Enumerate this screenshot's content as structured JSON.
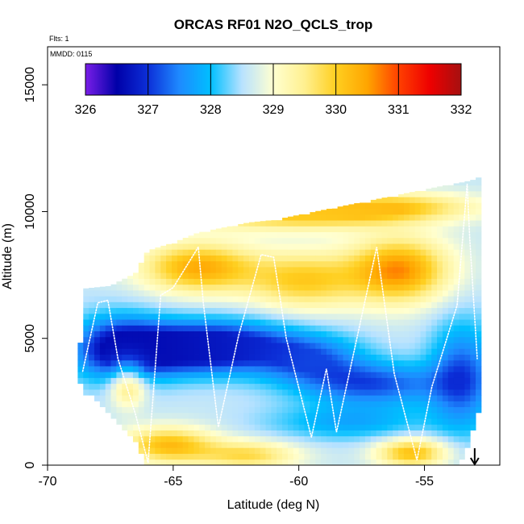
{
  "chart_data": {
    "type": "heatmap",
    "title": "ORCAS RF01 N2O_QCLS_trop",
    "flights_label": "Flts: 1",
    "date_label": "MMDD: 0115",
    "xlabel": "Latitude (deg N)",
    "ylabel": "Altitude (m)",
    "xlim": [
      -70,
      -52
    ],
    "ylim": [
      0,
      16500
    ],
    "x_ticks": [
      -70,
      -65,
      -60,
      -55
    ],
    "x_tick_labels": [
      "-70",
      "-65",
      "-60",
      "-55"
    ],
    "y_ticks": [
      0,
      5000,
      10000,
      15000
    ],
    "y_tick_labels": [
      "0",
      "5000",
      "10000",
      "15000"
    ],
    "colorbar": {
      "min": 326,
      "max": 332,
      "ticks": [
        326,
        327,
        328,
        329,
        330,
        331,
        332
      ],
      "tick_labels": [
        "326",
        "327",
        "328",
        "329",
        "330",
        "331",
        "332"
      ],
      "colors": [
        "#7a1ee8",
        "#0000a8",
        "#0c2fd8",
        "#1e8aff",
        "#00bfff",
        "#b8e2ff",
        "#ffffd0",
        "#fff090",
        "#ffcf20",
        "#ffa500",
        "#ff4000",
        "#ee0000",
        "#a51010"
      ]
    },
    "envelope": {
      "latitude": [
        -68.8,
        -68.5,
        -67.5,
        -66.5,
        -66.0,
        -65.0,
        -64.0,
        -63.0,
        -62.0,
        -61.0,
        -60.0,
        -59.0,
        -58.0,
        -57.0,
        -56.0,
        -55.0,
        -54.0,
        -53.4,
        -53.0,
        -52.8
      ],
      "top_altitude": [
        3600,
        6900,
        7000,
        7500,
        8400,
        8700,
        9100,
        9300,
        9500,
        9600,
        9800,
        10000,
        10200,
        10400,
        10600,
        10800,
        11000,
        11100,
        11200,
        11300
      ],
      "bottom_altitude": [
        3600,
        3000,
        2100,
        1000,
        0,
        0,
        0,
        0,
        0,
        0,
        0,
        0,
        0,
        0,
        0,
        0,
        0,
        300,
        1800,
        2300
      ]
    },
    "field_features": [
      {
        "lat": -67.2,
        "alt": 4600,
        "value": 326.9,
        "spread_lat": 1.3,
        "spread_alt": 900
      },
      {
        "lat": -65.0,
        "alt": 4600,
        "value": 326.9,
        "spread_lat": 1.8,
        "spread_alt": 700
      },
      {
        "lat": -62.5,
        "alt": 4700,
        "value": 327.1,
        "spread_lat": 1.8,
        "spread_alt": 700
      },
      {
        "lat": -59.5,
        "alt": 4200,
        "value": 327.4,
        "spread_lat": 1.5,
        "spread_alt": 700
      },
      {
        "lat": -57.0,
        "alt": 3200,
        "value": 327.2,
        "spread_lat": 2.0,
        "spread_alt": 600
      },
      {
        "lat": -53.5,
        "alt": 3500,
        "value": 327.2,
        "spread_lat": 0.9,
        "spread_alt": 1500
      },
      {
        "lat": -64.0,
        "alt": 7800,
        "value": 330.4,
        "spread_lat": 1.6,
        "spread_alt": 700
      },
      {
        "lat": -59.8,
        "alt": 7300,
        "value": 330.0,
        "spread_lat": 1.6,
        "spread_alt": 800
      },
      {
        "lat": -56.0,
        "alt": 7700,
        "value": 330.6,
        "spread_lat": 1.4,
        "spread_alt": 900
      },
      {
        "lat": -65.2,
        "alt": 800,
        "value": 330.2,
        "spread_lat": 1.3,
        "spread_alt": 500
      },
      {
        "lat": -62.0,
        "alt": 400,
        "value": 329.8,
        "spread_lat": 1.4,
        "spread_alt": 400
      },
      {
        "lat": -55.5,
        "alt": 500,
        "value": 330.2,
        "spread_lat": 1.0,
        "spread_alt": 400
      },
      {
        "lat": -66.8,
        "alt": 3200,
        "value": 329.9,
        "spread_lat": 0.5,
        "spread_alt": 600
      },
      {
        "lat": -60.5,
        "alt": 9800,
        "value": 329.8,
        "spread_lat": 3.0,
        "spread_alt": 400
      },
      {
        "lat": -56.5,
        "alt": 10200,
        "value": 330.0,
        "spread_lat": 2.5,
        "spread_alt": 400
      },
      {
        "lat": -58.0,
        "alt": 1700,
        "value": 327.8,
        "spread_lat": 2.2,
        "spread_alt": 500
      }
    ],
    "flight_track": {
      "latitude": [
        -68.6,
        -68.0,
        -67.6,
        -67.2,
        -66.5,
        -66.0,
        -65.5,
        -65.0,
        -64.0,
        -63.8,
        -63.2,
        -62.4,
        -61.5,
        -61.0,
        -60.5,
        -59.5,
        -58.9,
        -58.5,
        -56.9,
        -56.2,
        -55.3,
        -54.7,
        -53.7,
        -53.3,
        -53.2,
        -52.9
      ],
      "altitude": [
        3700,
        6400,
        6500,
        4200,
        2000,
        100,
        6700,
        7000,
        8600,
        6400,
        1500,
        5100,
        8300,
        8200,
        5000,
        1100,
        3800,
        1300,
        8600,
        3600,
        200,
        3100,
        6300,
        11100,
        9000,
        4200
      ]
    },
    "marker": {
      "lat": -53.0,
      "label": "arrow at end of flight"
    }
  }
}
